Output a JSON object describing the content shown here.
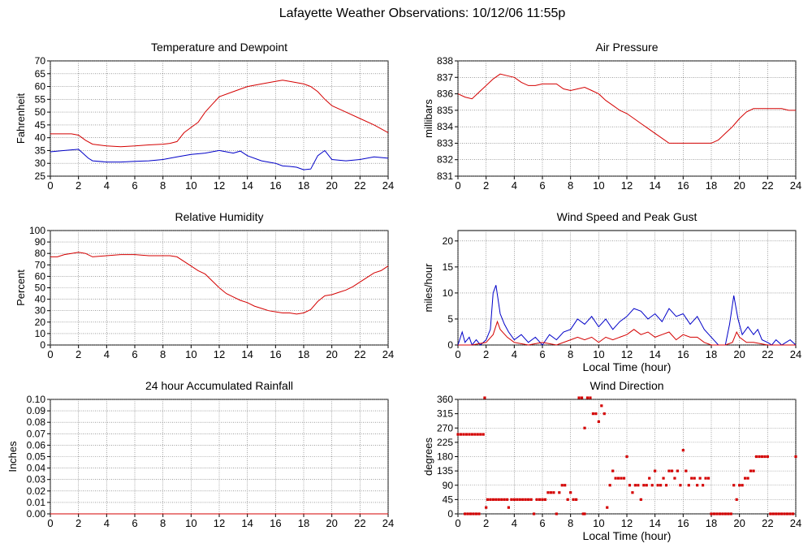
{
  "page": {
    "title": "Lafayette Weather Observations: 10/12/06 11:55p"
  },
  "chart_data": [
    {
      "type": "line",
      "title": "Temperature and Dewpoint",
      "xlabel": "",
      "ylabel": "Fahrenheit",
      "xlim": [
        0,
        24
      ],
      "ylim": [
        25,
        70
      ],
      "grid": true,
      "xticks": [
        "0",
        "2",
        "4",
        "6",
        "8",
        "10",
        "12",
        "14",
        "16",
        "18",
        "20",
        "22",
        "24"
      ],
      "yticks": [
        "25",
        "30",
        "35",
        "40",
        "45",
        "50",
        "55",
        "60",
        "65",
        "70"
      ],
      "series": [
        {
          "color": "#d40000",
          "x": [
            0,
            1.5,
            2,
            2.5,
            3,
            4,
            5,
            6,
            7,
            8,
            8.5,
            9,
            9.5,
            10,
            10.5,
            11,
            11.5,
            12,
            13,
            14,
            15,
            16,
            16.5,
            17,
            18,
            18.5,
            19,
            19.5,
            20,
            21,
            22,
            23,
            24
          ],
          "y": [
            41.5,
            41.5,
            41,
            39,
            37.5,
            36.8,
            36.5,
            36.8,
            37.2,
            37.5,
            37.8,
            38.5,
            42,
            44,
            46,
            50,
            53,
            56,
            58,
            60,
            61,
            62,
            62.5,
            62,
            61,
            60,
            58,
            55,
            52.5,
            50,
            47.5,
            45,
            42
          ]
        },
        {
          "color": "#0000c8",
          "x": [
            0,
            1,
            2,
            2.3,
            2.7,
            3,
            4,
            5,
            6,
            7,
            8,
            9,
            10,
            11,
            11.5,
            12,
            12.5,
            13,
            13.5,
            14,
            15,
            16,
            16.5,
            17,
            17.5,
            18,
            18.5,
            19,
            19.5,
            20,
            21,
            22,
            23,
            24
          ],
          "y": [
            34.5,
            35,
            35.5,
            34,
            32,
            31,
            30.5,
            30.5,
            30.8,
            31,
            31.5,
            32.5,
            33.5,
            34,
            34.5,
            35,
            34.5,
            34,
            34.8,
            33,
            31,
            30,
            29,
            28.8,
            28.5,
            27.5,
            27.8,
            33,
            35,
            31.5,
            31,
            31.5,
            32.5,
            32
          ]
        }
      ]
    },
    {
      "type": "line",
      "title": "Air Pressure",
      "xlabel": "",
      "ylabel": "millibars",
      "xlim": [
        0,
        24
      ],
      "ylim": [
        831,
        838
      ],
      "grid": true,
      "xticks": [
        "0",
        "2",
        "4",
        "6",
        "8",
        "10",
        "12",
        "14",
        "16",
        "18",
        "20",
        "22",
        "24"
      ],
      "yticks": [
        "831",
        "832",
        "833",
        "834",
        "835",
        "836",
        "837",
        "838"
      ],
      "series": [
        {
          "color": "#d40000",
          "x": [
            0,
            0.5,
            1,
            1.5,
            2,
            2.5,
            3,
            3.5,
            4,
            4.5,
            5,
            5.5,
            6,
            6.5,
            7,
            7.5,
            8,
            8.5,
            9,
            9.5,
            10,
            10.5,
            11,
            11.5,
            12,
            12.5,
            13,
            13.5,
            14,
            14.5,
            15,
            16,
            17,
            18,
            18.5,
            19,
            19.5,
            20,
            20.5,
            21,
            21.5,
            22,
            23,
            23.5,
            24
          ],
          "y": [
            836,
            835.8,
            835.7,
            836.1,
            836.5,
            836.9,
            837.2,
            837.1,
            837,
            836.7,
            836.5,
            836.5,
            836.6,
            836.6,
            836.6,
            836.3,
            836.2,
            836.3,
            836.4,
            836.2,
            836,
            835.6,
            835.3,
            835,
            834.8,
            834.5,
            834.2,
            833.9,
            833.6,
            833.3,
            833,
            833,
            833,
            833,
            833.2,
            833.6,
            834,
            834.5,
            834.9,
            835.1,
            835.1,
            835.1,
            835.1,
            835,
            835
          ]
        }
      ]
    },
    {
      "type": "line",
      "title": "Relative Humidity",
      "xlabel": "",
      "ylabel": "Percent",
      "xlim": [
        0,
        24
      ],
      "ylim": [
        0,
        100
      ],
      "grid": true,
      "xticks": [
        "0",
        "2",
        "4",
        "6",
        "8",
        "10",
        "12",
        "14",
        "16",
        "18",
        "20",
        "22",
        "24"
      ],
      "yticks": [
        "0",
        "10",
        "20",
        "30",
        "40",
        "50",
        "60",
        "70",
        "80",
        "90",
        "100"
      ],
      "series": [
        {
          "color": "#d40000",
          "x": [
            0,
            0.5,
            1,
            1.5,
            2,
            2.5,
            3,
            4,
            5,
            6,
            7,
            8,
            8.5,
            9,
            9.5,
            10,
            10.5,
            11,
            11.5,
            12,
            12.5,
            13,
            13.5,
            14,
            14.5,
            15,
            15.5,
            16,
            16.5,
            17,
            17.5,
            18,
            18.5,
            19,
            19.5,
            20,
            20.5,
            21,
            21.5,
            22,
            22.5,
            23,
            23.5,
            24
          ],
          "y": [
            77,
            77,
            79,
            80,
            81,
            80,
            77,
            78,
            79,
            79,
            78,
            78,
            78,
            77,
            73,
            69,
            65,
            62,
            56,
            50,
            45,
            42,
            39,
            37,
            34,
            32,
            30,
            29,
            28,
            28,
            27,
            28,
            31,
            38,
            43,
            44,
            46,
            48,
            51,
            55,
            59,
            63,
            65,
            69
          ]
        }
      ]
    },
    {
      "type": "line",
      "title": "Wind Speed and Peak Gust",
      "xlabel": "Local Time (hour)",
      "ylabel": "miles/hour",
      "xlim": [
        0,
        24
      ],
      "ylim": [
        0,
        22
      ],
      "grid": true,
      "xticks": [
        "0",
        "2",
        "4",
        "6",
        "8",
        "10",
        "12",
        "14",
        "16",
        "18",
        "20",
        "22",
        "24"
      ],
      "yticks": [
        "0",
        "5",
        "10",
        "15",
        "20"
      ],
      "series": [
        {
          "color": "#0000c8",
          "x": [
            0,
            0.3,
            0.5,
            0.8,
            1,
            1.3,
            1.6,
            2,
            2.3,
            2.5,
            2.7,
            3,
            3.3,
            3.6,
            4,
            4.5,
            5,
            5.5,
            6,
            6.5,
            7,
            7.5,
            8,
            8.5,
            9,
            9.5,
            10,
            10.5,
            11,
            11.5,
            12,
            12.5,
            13,
            13.5,
            14,
            14.5,
            15,
            15.5,
            16,
            16.5,
            17,
            17.5,
            18,
            18.5,
            19,
            19.3,
            19.6,
            19.9,
            20.2,
            20.6,
            21,
            21.3,
            21.6,
            22,
            22.3,
            22.6,
            23,
            23.3,
            23.6,
            24
          ],
          "y": [
            0,
            2.5,
            0.5,
            1.5,
            0,
            1,
            0,
            1,
            3,
            10,
            11.5,
            6,
            4,
            2.5,
            1,
            2,
            0.5,
            1.5,
            0,
            2,
            1,
            2.5,
            3,
            5,
            4,
            5.5,
            3.5,
            5,
            3,
            4.5,
            5.5,
            7,
            6.5,
            5,
            6,
            4.5,
            7,
            5.5,
            6,
            4,
            5.5,
            3,
            1.5,
            0,
            0,
            4,
            9.5,
            5,
            2,
            3.5,
            2,
            3,
            1,
            0.5,
            0,
            1,
            0,
            0.5,
            1,
            0
          ]
        },
        {
          "color": "#d40000",
          "x": [
            0,
            1,
            2,
            2.5,
            2.8,
            3,
            3.5,
            4,
            5,
            6,
            7,
            8,
            8.5,
            9,
            9.5,
            10,
            10.5,
            11,
            11.5,
            12,
            12.5,
            13,
            13.5,
            14,
            14.5,
            15,
            15.5,
            16,
            16.5,
            17,
            17.5,
            18,
            19,
            19.5,
            19.8,
            20,
            20.5,
            21,
            22,
            23,
            24
          ],
          "y": [
            0,
            0,
            0.5,
            2,
            4.5,
            3,
            1.5,
            0.5,
            0,
            0.5,
            0,
            1,
            1.5,
            1,
            1.5,
            0.5,
            1.5,
            1,
            1.5,
            2,
            3,
            2,
            2.5,
            1.5,
            2,
            2.5,
            1,
            2,
            1.5,
            1.5,
            0.5,
            0,
            0,
            0.5,
            2.5,
            1.5,
            0.5,
            0.5,
            0,
            0,
            0
          ]
        }
      ]
    },
    {
      "type": "line",
      "title": "24 hour Accumulated Rainfall",
      "xlabel": "",
      "ylabel": "Inches",
      "xlim": [
        0,
        24
      ],
      "ylim": [
        0,
        0.1
      ],
      "grid": true,
      "xticks": [
        "0",
        "2",
        "4",
        "6",
        "8",
        "10",
        "12",
        "14",
        "16",
        "18",
        "20",
        "22",
        "24"
      ],
      "yticks": [
        "0.00",
        "0.01",
        "0.02",
        "0.03",
        "0.04",
        "0.05",
        "0.06",
        "0.07",
        "0.08",
        "0.09",
        "0.10"
      ],
      "series": [
        {
          "color": "#d40000",
          "x": [
            0,
            24
          ],
          "y": [
            0,
            0
          ]
        }
      ]
    },
    {
      "type": "scatter",
      "title": "Wind Direction",
      "xlabel": "Local Time (hour)",
      "ylabel": "degrees",
      "xlim": [
        0,
        24
      ],
      "ylim": [
        0,
        360
      ],
      "grid": true,
      "xticks": [
        "0",
        "2",
        "4",
        "6",
        "8",
        "10",
        "12",
        "14",
        "16",
        "18",
        "20",
        "22",
        "24"
      ],
      "yticks": [
        "0",
        "45",
        "90",
        "135",
        "180",
        "225",
        "270",
        "315",
        "360"
      ],
      "series": [
        {
          "color": "#d40000",
          "x": [
            0,
            0.2,
            0.4,
            0.6,
            0.8,
            1.0,
            1.2,
            1.4,
            1.6,
            1.8,
            0.5,
            0.7,
            0.9,
            1.1,
            1.3,
            1.5,
            1.9,
            2.0,
            2.1,
            2.3,
            2.5,
            2.7,
            2.9,
            3.1,
            3.3,
            3.5,
            3.6,
            3.8,
            4.0,
            4.2,
            4.4,
            4.6,
            4.8,
            5.0,
            5.2,
            5.4,
            5.6,
            5.8,
            6.0,
            6.2,
            6.4,
            6.6,
            6.8,
            7.0,
            7.2,
            7.4,
            7.6,
            7.8,
            8.0,
            8.2,
            8.4,
            8.6,
            8.8,
            9.0,
            9.2,
            9.4,
            8.9,
            9.0,
            9.6,
            9.8,
            10.0,
            10.2,
            10.4,
            10.6,
            10.8,
            11.0,
            11.2,
            11.4,
            11.6,
            11.8,
            12.0,
            12.2,
            12.4,
            12.6,
            12.8,
            13.0,
            13.2,
            13.4,
            13.6,
            13.8,
            14.0,
            14.2,
            14.4,
            14.6,
            14.8,
            15.0,
            15.2,
            15.4,
            15.6,
            15.8,
            16.0,
            16.2,
            16.4,
            16.6,
            16.8,
            17.0,
            17.2,
            17.4,
            17.6,
            17.8,
            18.0,
            18.2,
            18.4,
            18.6,
            18.8,
            19.0,
            19.2,
            19.4,
            19.6,
            19.8,
            20.0,
            20.2,
            20.4,
            20.6,
            20.8,
            21.0,
            21.2,
            21.4,
            21.6,
            21.8,
            22.0,
            22.2,
            22.4,
            22.6,
            22.8,
            23.0,
            23.2,
            23.4,
            23.6,
            23.8,
            24.0
          ],
          "y": [
            250,
            250,
            250,
            250,
            250,
            250,
            250,
            250,
            250,
            250,
            0,
            0,
            0,
            0,
            0,
            0,
            370,
            20,
            45,
            45,
            45,
            45,
            45,
            45,
            45,
            45,
            20,
            45,
            45,
            45,
            45,
            45,
            45,
            45,
            45,
            0,
            45,
            45,
            45,
            45,
            67,
            67,
            67,
            0,
            67,
            90,
            90,
            45,
            67,
            45,
            45,
            370,
            370,
            270,
            370,
            370,
            0,
            0,
            315,
            315,
            290,
            340,
            315,
            20,
            90,
            135,
            112,
            112,
            112,
            112,
            180,
            90,
            67,
            90,
            90,
            45,
            90,
            90,
            112,
            90,
            135,
            90,
            90,
            112,
            90,
            135,
            135,
            112,
            135,
            90,
            200,
            135,
            90,
            112,
            112,
            90,
            112,
            90,
            112,
            112,
            0,
            0,
            0,
            0,
            0,
            0,
            0,
            0,
            90,
            45,
            90,
            90,
            112,
            112,
            135,
            135,
            180,
            180,
            180,
            180,
            180,
            0,
            0,
            0,
            0,
            0,
            0,
            0,
            0,
            0,
            180
          ]
        }
      ]
    }
  ]
}
